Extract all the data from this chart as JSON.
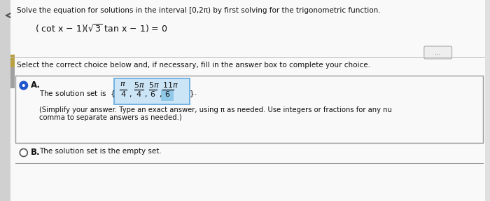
{
  "background_color": "#e0e0e0",
  "white_bg": "#f4f4f4",
  "panel_bg": "#f9f9f9",
  "title_text": "Solve the equation for solutions in the interval [0,2π) by first solving for the trigonometric function.",
  "select_text": "Select the correct choice below and, if necessary, fill in the answer box to complete your choice.",
  "choice_A_prefix": "The solution set is",
  "choice_A_suffix": "(Simplify your answer. Type an exact answer, using π as needed. Use integers or fractions for any nu",
  "choice_A_suffix2": "comma to separate answers as needed.)",
  "choice_B_text": "The solution set is the empty set.",
  "dots_text": "...",
  "box_color": "#cce5f6",
  "box_border": "#6aade0",
  "highlight_color": "#90c8e8",
  "selected_fill": "#2255cc",
  "selected_ring": "#2255cc",
  "unselected_ring": "#555555",
  "text_color": "#111111",
  "left_strip_color": "#b8a040",
  "left_gray_color": "#c0c0c0",
  "divider_color": "#bbbbbb",
  "section_border": "#999999",
  "left_arrow_color": "#555555"
}
